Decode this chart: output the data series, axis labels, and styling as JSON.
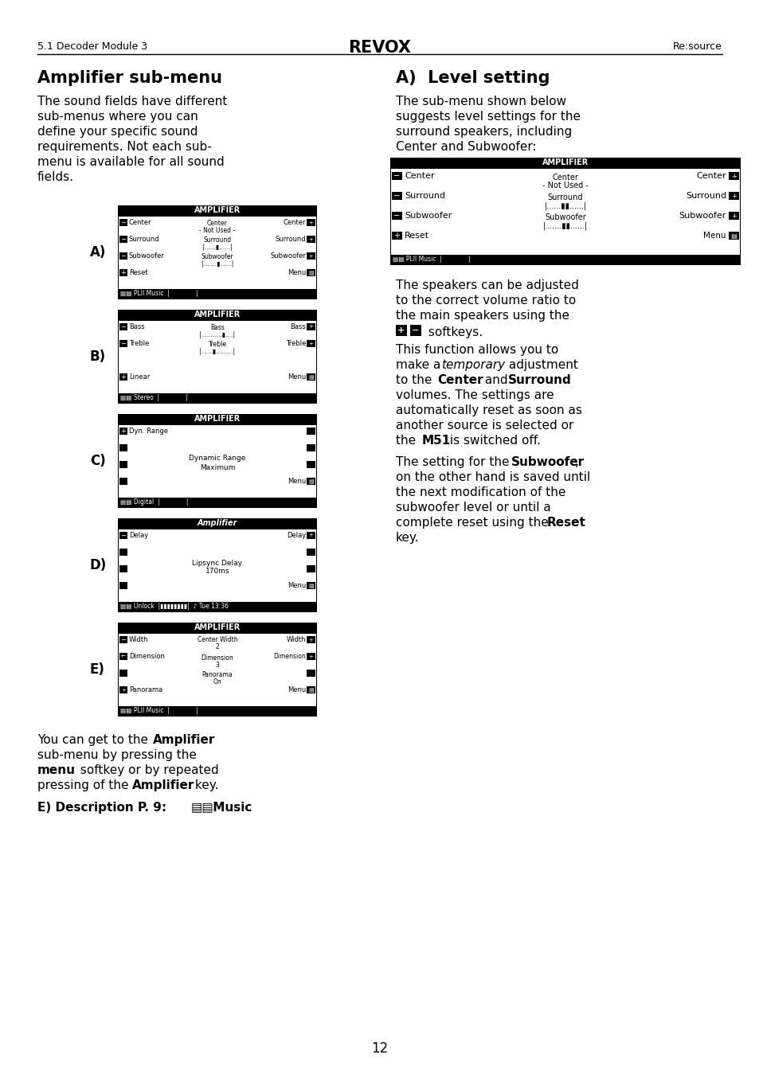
{
  "page_header_left": "5.1 Decoder Module 3",
  "page_header_center": "REVOX",
  "page_header_right": "Re:source",
  "page_number": "12",
  "left_col_title": "Amplifier sub-menu",
  "right_col_title": "A)  Level setting",
  "label_A": "A)",
  "label_B": "B)",
  "label_C": "C)",
  "label_D": "D)",
  "label_E": "E)"
}
